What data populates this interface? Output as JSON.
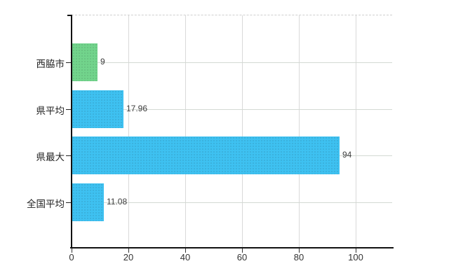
{
  "chart_data": {
    "type": "bar",
    "orientation": "horizontal",
    "title": "",
    "xlabel": "",
    "ylabel": "",
    "categories": [
      "西脇市",
      "県平均",
      "県最大",
      "全国平均"
    ],
    "values": [
      9,
      17.96,
      94,
      11.08
    ],
    "value_labels": [
      "9",
      "17.96",
      "94",
      "11.08"
    ],
    "bar_colors": [
      "#72D48C",
      "#3EC1F1",
      "#3EC1F1",
      "#3EC1F1"
    ],
    "x_tick_values": [
      0,
      20,
      40,
      60,
      80,
      100
    ],
    "x_tick_labels": [
      "0",
      "20",
      "40",
      "60",
      "80",
      "100"
    ],
    "xlim": [
      0,
      113
    ],
    "grid": true,
    "legend": false
  },
  "style": {
    "background": "#ffffff",
    "bar_blue": "#3EC1F1",
    "bar_green": "#72D48C",
    "gridline_color": "#d9d9d9",
    "axis_color": "#111111",
    "tick_label_color": "#333333",
    "value_label_color": "#3c3c3c",
    "category_label_color": "#222222"
  }
}
